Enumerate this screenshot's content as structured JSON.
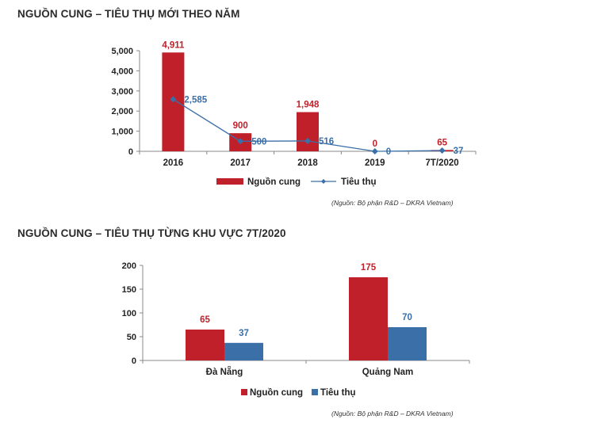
{
  "chart_data": [
    {
      "type": "bar",
      "title": "NGUỒN CUNG – TIÊU THỤ MỚI THEO NĂM",
      "categories": [
        "2016",
        "2017",
        "2018",
        "2019",
        "7T/2020"
      ],
      "series": [
        {
          "name": "Nguồn cung",
          "type": "bar",
          "values": [
            4911,
            900,
            1948,
            0,
            65
          ],
          "labels": [
            "4,911",
            "900",
            "1,948",
            "0",
            "65"
          ],
          "color": "#c0202a"
        },
        {
          "name": "Tiêu thụ",
          "type": "line",
          "values": [
            2585,
            500,
            516,
            0,
            37
          ],
          "labels": [
            "2,585",
            "500",
            "516",
            "0",
            "37"
          ],
          "color": "#3a6fa8"
        }
      ],
      "ylim": [
        0,
        5000
      ],
      "yticks": [
        0,
        1000,
        2000,
        3000,
        4000,
        5000
      ],
      "ytick_labels": [
        "0",
        "1,000",
        "2,000",
        "3,000",
        "4,000",
        "5,000"
      ],
      "grid": false,
      "legend": "bottom",
      "source": "(Nguồn: Bộ phận R&D – DKRA Vietnam)"
    },
    {
      "type": "bar",
      "title": "NGUỒN CUNG – TIÊU THỤ TỪNG KHU VỰC 7T/2020",
      "categories": [
        "Đà Nẵng",
        "Quảng Nam"
      ],
      "series": [
        {
          "name": "Nguồn cung",
          "values": [
            65,
            175
          ],
          "labels": [
            "65",
            "175"
          ],
          "color": "#c0202a"
        },
        {
          "name": "Tiêu thụ",
          "values": [
            37,
            70
          ],
          "labels": [
            "37",
            "70"
          ],
          "color": "#3a6fa8"
        }
      ],
      "ylim": [
        0,
        200
      ],
      "yticks": [
        0,
        50,
        100,
        150,
        200
      ],
      "ytick_labels": [
        "0",
        "50",
        "100",
        "150",
        "200"
      ],
      "grid": false,
      "legend": "bottom",
      "source": "(Nguồn: Bộ phận R&D – DKRA Vietnam)"
    }
  ]
}
